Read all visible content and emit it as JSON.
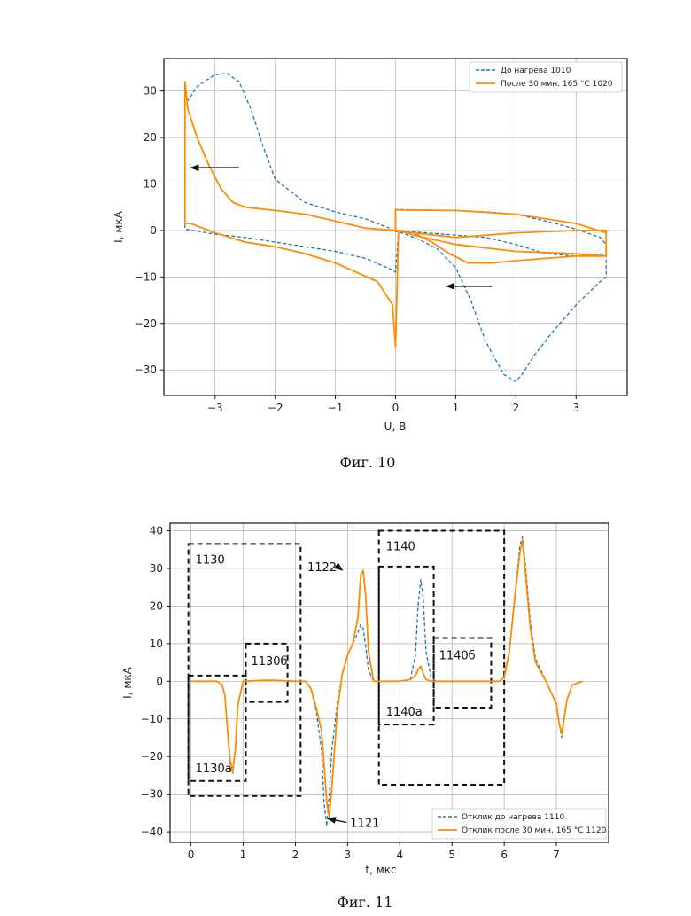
{
  "chart_data": [
    {
      "type": "line",
      "figure_label": "Фиг. 10",
      "title": "",
      "xlabel": "U, В",
      "ylabel": "I, мкА",
      "xlim": [
        -3.85,
        3.85
      ],
      "ylim": [
        -35.5,
        37
      ],
      "xticks": [
        -3,
        -2,
        -1,
        0,
        1,
        2,
        3
      ],
      "yticks": [
        -30,
        -20,
        -10,
        0,
        10,
        20,
        30
      ],
      "xtick_labels": [
        "−3",
        "−2",
        "−1",
        "0",
        "1",
        "2",
        "3"
      ],
      "ytick_labels": [
        "−30",
        "−20",
        "−10",
        "0",
        "10",
        "20",
        "30"
      ],
      "grid": true,
      "legend_position": "top-right",
      "colors": {
        "series1": "#1f77b4",
        "series2": "#ff8c00"
      },
      "arrows": [
        {
          "from": [
            -2.6,
            13.5
          ],
          "to": [
            -3.4,
            13.5
          ]
        },
        {
          "from": [
            1.6,
            -12
          ],
          "to": [
            0.85,
            -12
          ]
        }
      ],
      "series": [
        {
          "name": "До нагрева 1010",
          "style": "dashed",
          "x": [
            3.5,
            3.5,
            3.4,
            3.0,
            2.6,
            2.3,
            2.1,
            2.0,
            1.8,
            1.5,
            1.25,
            1.0,
            0.7,
            0.4,
            0.1,
            0.0,
            0.0,
            0.05,
            0.5,
            1.0,
            1.5,
            2.0,
            2.5,
            3.0,
            3.4,
            3.5,
            3.5,
            3.0,
            2.5,
            2.0,
            1.5,
            1.0,
            0.5,
            0.05,
            0.0,
            -0.05,
            -0.5,
            -1.0,
            -1.5,
            -2.0,
            -2.5,
            -3.0,
            -3.5,
            -3.5,
            -3.3,
            -3.0,
            -2.8,
            -2.6,
            -2.4,
            -2.2,
            -2.0,
            -1.5,
            -1.0,
            -0.5,
            -0.1
          ],
          "y": [
            -5,
            -10,
            -11,
            -16,
            -22,
            -27,
            -31,
            -32.5,
            -31,
            -24,
            -15,
            -8,
            -4,
            -2,
            -0.5,
            -0.2,
            4.5,
            4.5,
            4.4,
            4.3,
            4.0,
            3.5,
            2.0,
            0.3,
            -1.5,
            -3,
            -5,
            -5.5,
            -5,
            -3,
            -1.5,
            -1,
            -0.5,
            0,
            -9,
            -8.5,
            -6,
            -4.5,
            -3.5,
            -2.5,
            -1.5,
            -0.8,
            0.3,
            27,
            31,
            33.5,
            33.8,
            32,
            26,
            18,
            11,
            6,
            4,
            2.5,
            0.5
          ]
        },
        {
          "name": "После 30 мин. 165 °С 1020",
          "style": "solid",
          "x": [
            0.0,
            0.3,
            0.6,
            0.9,
            1.2,
            1.6,
            2.0,
            2.5,
            3.0,
            3.5,
            3.5,
            3.0,
            2.0,
            1.0,
            0.3,
            0.0,
            0.0,
            0.05,
            1.0,
            2.0,
            3.0,
            3.5,
            3.5,
            3.0,
            2.0,
            1.0,
            0.3,
            0.05,
            0.0,
            -0.05,
            -0.3,
            -1.0,
            -1.5,
            -2.0,
            -2.5,
            -3.0,
            -3.4,
            -3.5,
            -3.5,
            -3.45,
            -3.3,
            -3.1,
            -2.9,
            -2.7,
            -2.5,
            -2.0,
            -1.5,
            -1.0,
            -0.5,
            0.0
          ],
          "y": [
            0,
            -0.5,
            -2.5,
            -5,
            -7,
            -7,
            -6.5,
            -6,
            -5.5,
            -5.5,
            0,
            0,
            -0.5,
            -1.5,
            -0.5,
            0,
            4.5,
            4.4,
            4.3,
            3.5,
            1.5,
            -0.5,
            -5.5,
            -5,
            -4.5,
            -3,
            -1,
            0,
            -25,
            -16,
            -11,
            -7,
            -5,
            -3.5,
            -2.5,
            -0.5,
            1.5,
            1.5,
            32,
            26,
            20,
            14,
            9,
            6,
            5,
            4.3,
            3.5,
            2,
            0.5,
            0
          ]
        }
      ]
    },
    {
      "type": "line",
      "figure_label": "Фиг. 11",
      "title": "",
      "xlabel": "t, мкс",
      "ylabel": "I, мкА",
      "xlim": [
        -0.4,
        8.0
      ],
      "ylim": [
        -42.8,
        42
      ],
      "xticks": [
        0,
        1,
        2,
        3,
        4,
        5,
        6,
        7
      ],
      "yticks": [
        -40,
        -30,
        -20,
        -10,
        0,
        10,
        20,
        30,
        40
      ],
      "xtick_labels": [
        "0",
        "1",
        "2",
        "3",
        "4",
        "5",
        "6",
        "7"
      ],
      "ytick_labels": [
        "−40",
        "−30",
        "−20",
        "−10",
        "0",
        "10",
        "20",
        "30",
        "40"
      ],
      "grid": true,
      "legend_position": "bottom-right",
      "colors": {
        "series1": "#1f77b4",
        "series2": "#ff8c00"
      },
      "regions": [
        {
          "label": "1130",
          "x0": -0.05,
          "x1": 2.1,
          "y0": -30.5,
          "y1": 36.5
        },
        {
          "label": "1130а",
          "x0": -0.05,
          "x1": 1.05,
          "y0": -26.5,
          "y1": 1.5
        },
        {
          "label": "1130б",
          "x0": 1.05,
          "x1": 1.85,
          "y0": -5.5,
          "y1": 10
        },
        {
          "label": "1140",
          "x0": 3.6,
          "x1": 6.0,
          "y0": -27.5,
          "y1": 40
        },
        {
          "label": "1140а",
          "x0": 3.6,
          "x1": 4.65,
          "y0": -11.5,
          "y1": 30.5
        },
        {
          "label": "1140б",
          "x0": 4.65,
          "x1": 5.75,
          "y0": -7,
          "y1": 11.5
        }
      ],
      "annotations": [
        {
          "text": "1122",
          "x": 2.23,
          "y": 30.5,
          "arrow_to": [
            2.9,
            29.5
          ]
        },
        {
          "text": "1121",
          "x": 3.05,
          "y": -37.5,
          "arrow_to": [
            2.62,
            -36.5
          ]
        }
      ],
      "series": [
        {
          "name": "Отклик до нагрева 1110",
          "style": "dashed",
          "x": [
            0,
            0.5,
            0.6,
            0.65,
            0.7,
            0.75,
            0.8,
            0.85,
            0.9,
            1.0,
            1.5,
            2.0,
            2.1,
            2.2,
            2.3,
            2.4,
            2.5,
            2.55,
            2.6,
            2.65,
            2.7,
            2.8,
            2.9,
            3.0,
            3.1,
            3.2,
            3.25,
            3.3,
            3.35,
            3.4,
            3.5,
            3.6,
            3.8,
            4.0,
            4.2,
            4.3,
            4.35,
            4.4,
            4.45,
            4.5,
            4.6,
            4.7,
            5.0,
            5.5,
            5.9,
            6.0,
            6.1,
            6.2,
            6.3,
            6.35,
            6.4,
            6.5,
            6.6,
            6.8,
            7.0,
            7.05,
            7.1,
            7.2,
            7.3,
            7.5
          ],
          "y": [
            0,
            0,
            -1,
            -4,
            -13,
            -22,
            -24.5,
            -18,
            -6,
            0,
            0.3,
            0,
            0,
            0,
            -2,
            -8,
            -18,
            -32,
            -38.5,
            -30,
            -18,
            -6,
            2,
            7,
            10,
            13,
            15,
            14,
            9,
            3,
            0,
            0,
            0,
            0,
            0.5,
            7,
            20,
            27,
            22,
            8,
            1,
            0,
            0,
            0,
            0,
            1,
            8,
            22,
            36,
            38.5,
            32,
            16,
            6,
            0,
            -6,
            -11,
            -15,
            -5,
            -1,
            0
          ]
        },
        {
          "name": "Отклик после 30 мин. 165 °С 1120",
          "style": "solid",
          "x": [
            0,
            0.5,
            0.6,
            0.65,
            0.7,
            0.75,
            0.8,
            0.85,
            0.9,
            1.0,
            1.5,
            2.0,
            2.1,
            2.2,
            2.3,
            2.4,
            2.5,
            2.55,
            2.6,
            2.65,
            2.7,
            2.8,
            2.9,
            3.0,
            3.1,
            3.2,
            3.25,
            3.3,
            3.35,
            3.4,
            3.5,
            3.6,
            3.8,
            4.0,
            4.2,
            4.3,
            4.35,
            4.4,
            4.45,
            4.5,
            4.6,
            4.7,
            5.0,
            5.5,
            5.9,
            6.0,
            6.1,
            6.2,
            6.3,
            6.35,
            6.4,
            6.5,
            6.6,
            6.8,
            7.0,
            7.05,
            7.1,
            7.2,
            7.3,
            7.5
          ],
          "y": [
            0,
            0,
            -1,
            -4,
            -13,
            -21,
            -24,
            -18,
            -6,
            0,
            0.3,
            0,
            0,
            0,
            -2,
            -7,
            -13,
            -22,
            -32,
            -36,
            -28,
            -8,
            2,
            7,
            10,
            17,
            28,
            29.5,
            22,
            8,
            0,
            0,
            0,
            0,
            0.5,
            1.5,
            3,
            4,
            2,
            0.5,
            0,
            0,
            0,
            0,
            0,
            1,
            8,
            22,
            34,
            37.5,
            30,
            14,
            5,
            0,
            -6,
            -11,
            -14,
            -5,
            -1,
            0
          ]
        }
      ]
    }
  ]
}
